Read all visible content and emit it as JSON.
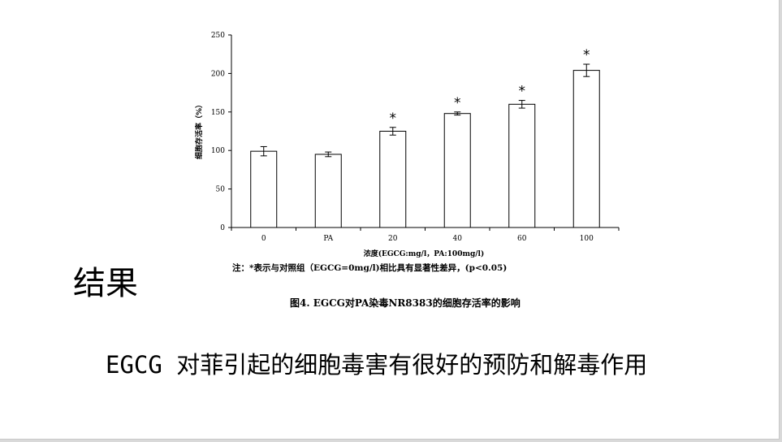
{
  "slide": {
    "section_title": "结果",
    "conclusion": "EGCG 对菲引起的细胞毒害有很好的预防和解毒作用"
  },
  "figure": {
    "note": "注：*表示与对照组（EGCG=0mg/l)相比具有显著性差异，(p<0.05)",
    "caption": "图4. EGCG对PA染毒NR8383的细胞存活率的影响"
  },
  "chart_data": {
    "type": "bar",
    "categories": [
      "0",
      "PA",
      "20",
      "40",
      "60",
      "100"
    ],
    "values": [
      99,
      95,
      125,
      148,
      160,
      204
    ],
    "errors": [
      6,
      3,
      5,
      2,
      5,
      8
    ],
    "significance": [
      "",
      "",
      "*",
      "*",
      "*",
      "*"
    ],
    "ylabel": "细胞存活率（%）",
    "xlabel": "浓度(EGCG:mg/l，PA:100mg/l)",
    "ylim": [
      0,
      250
    ],
    "yticks": [
      0,
      50,
      100,
      150,
      200,
      250
    ],
    "grid": false,
    "legend": "none",
    "bar_color": "#ffffff",
    "edge_color": "#000000"
  }
}
